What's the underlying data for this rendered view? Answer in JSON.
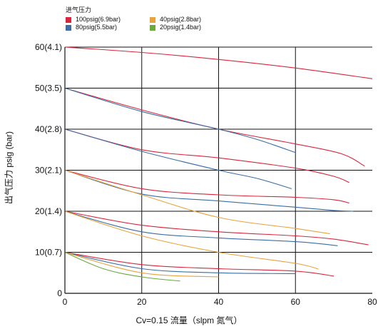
{
  "chart_data": {
    "type": "line",
    "legend_title": "进气压力",
    "legend_placement": "top-left",
    "xlabel": "Cv=0.15  流量（slpm 氮气）",
    "ylabel": "出气压力 psig (bar)",
    "xlim": [
      0,
      80
    ],
    "ylim": [
      0,
      60
    ],
    "x_ticks": [
      "0",
      "20",
      "40",
      "60",
      "80"
    ],
    "y_ticks": [
      "0",
      "10(0.7)",
      "20(1.4)",
      "30(2.1)",
      "40(2.8)",
      "50(3.5)",
      "60(4.1)"
    ],
    "grid": true,
    "colors": {
      "100psig": "#d7263d",
      "80psig": "#3a6ea5",
      "40psig": "#e8a33d",
      "20psig": "#6aaa3a"
    },
    "series": [
      {
        "name": "100psig(6.9bar)",
        "color": "#d7263d",
        "curves": [
          {
            "x": [
              0,
              20,
              40,
              60,
              80
            ],
            "y": [
              60,
              58.7,
              57.0,
              54.9,
              52.3
            ]
          },
          {
            "x": [
              0,
              20,
              40,
              60,
              72,
              78
            ],
            "y": [
              50,
              44.7,
              40.0,
              36.4,
              34.0,
              31.0
            ]
          },
          {
            "x": [
              0,
              20,
              40,
              60,
              70,
              74
            ],
            "y": [
              40,
              35.0,
              33.0,
              30.5,
              28.5,
              27.0
            ]
          },
          {
            "x": [
              0,
              20,
              40,
              60,
              70,
              74
            ],
            "y": [
              30,
              25.5,
              24.0,
              23.4,
              22.8,
              22.0
            ]
          },
          {
            "x": [
              0,
              20,
              40,
              60,
              70,
              79
            ],
            "y": [
              20,
              16.6,
              15.0,
              14.0,
              13.2,
              11.8
            ]
          },
          {
            "x": [
              0,
              20,
              40,
              60,
              70
            ],
            "y": [
              10,
              7.0,
              6.0,
              5.4,
              4.2
            ]
          }
        ]
      },
      {
        "name": "80psig(5.5bar)",
        "color": "#3a6ea5",
        "curves": [
          {
            "x": [
              0,
              20,
              40,
              50,
              60
            ],
            "y": [
              50,
              44.3,
              40.0,
              37.5,
              34.3
            ]
          },
          {
            "x": [
              0,
              20,
              40,
              50,
              59
            ],
            "y": [
              40,
              34.6,
              30.0,
              28.0,
              25.5
            ]
          },
          {
            "x": [
              0,
              20,
              40,
              60,
              70,
              75
            ],
            "y": [
              30,
              24.2,
              22.5,
              21.0,
              20.2,
              20.0
            ]
          },
          {
            "x": [
              0,
              20,
              40,
              60,
              71
            ],
            "y": [
              20,
              15.0,
              13.5,
              12.6,
              11.6
            ]
          },
          {
            "x": [
              0,
              20,
              40,
              60
            ],
            "y": [
              10,
              6.0,
              5.0,
              4.8
            ]
          }
        ]
      },
      {
        "name": "40psig(2.8bar)",
        "color": "#e8a33d",
        "curves": [
          {
            "x": [
              0,
              20,
              40,
              60,
              69
            ],
            "y": [
              30,
              24.0,
              18.5,
              15.8,
              14.5
            ]
          },
          {
            "x": [
              0,
              20,
              40,
              60,
              66
            ],
            "y": [
              20,
              14.0,
              10.0,
              7.3,
              5.9
            ]
          },
          {
            "x": [
              0,
              20,
              40
            ],
            "y": [
              10,
              5.0,
              4.0
            ]
          }
        ]
      },
      {
        "name": "20psig(1.4bar)",
        "color": "#6aaa3a",
        "curves": [
          {
            "x": [
              0,
              10,
              20,
              30
            ],
            "y": [
              10,
              6.0,
              4.0,
              3.0
            ]
          }
        ]
      }
    ]
  }
}
